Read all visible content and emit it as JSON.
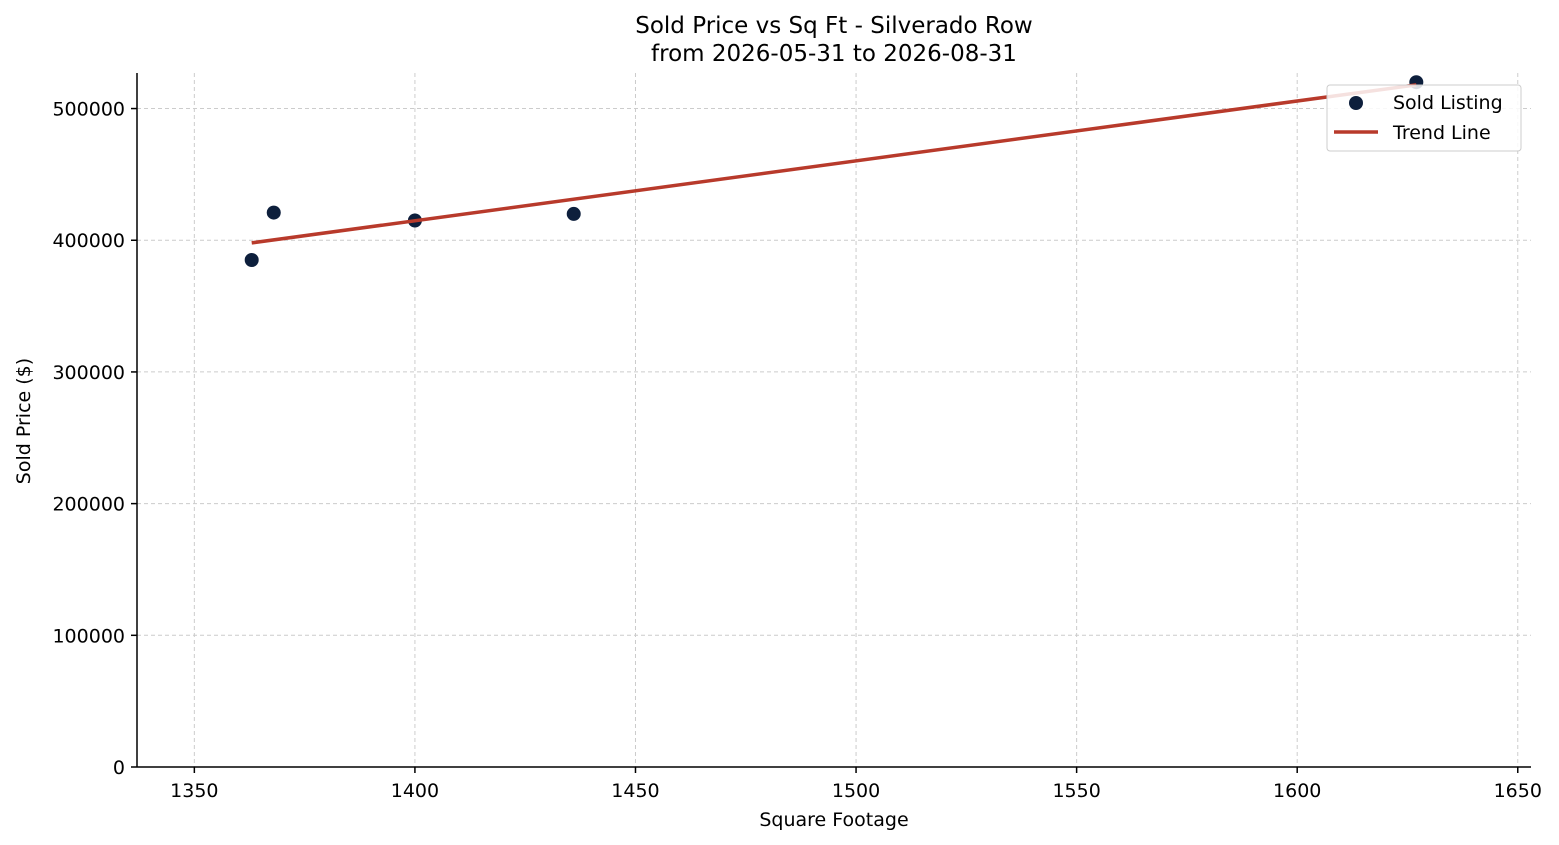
{
  "chart_data": {
    "type": "scatter",
    "title": "Sold Price vs Sq Ft - Silverado Row",
    "subtitle": "from 2026-05-31 to 2026-08-31",
    "xlabel": "Square Footage",
    "ylabel": "Sold Price ($)",
    "xlim": [
      1337,
      1653
    ],
    "ylim": [
      0,
      527000
    ],
    "xticks": [
      1350,
      1400,
      1450,
      1500,
      1550,
      1600,
      1650
    ],
    "yticks": [
      0,
      100000,
      200000,
      300000,
      400000,
      500000
    ],
    "xtick_labels": [
      "1350",
      "1400",
      "1450",
      "1500",
      "1550",
      "1600",
      "1650"
    ],
    "ytick_labels": [
      "0",
      "100000",
      "200000",
      "300000",
      "400000",
      "500000"
    ],
    "grid": true,
    "legend_position": "top-right",
    "series": [
      {
        "name": "Sold Listing",
        "kind": "scatter",
        "color": "#0d1f3c",
        "points": [
          {
            "x": 1363,
            "y": 385000
          },
          {
            "x": 1368,
            "y": 421000
          },
          {
            "x": 1400,
            "y": 415000
          },
          {
            "x": 1436,
            "y": 420000
          },
          {
            "x": 1627,
            "y": 520000
          }
        ]
      },
      {
        "name": "Trend Line",
        "kind": "line",
        "color": "#b83a2b",
        "points": [
          {
            "x": 1363,
            "y": 398000
          },
          {
            "x": 1627,
            "y": 518000
          }
        ]
      }
    ]
  }
}
